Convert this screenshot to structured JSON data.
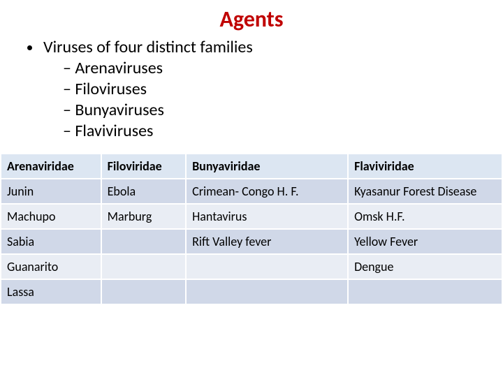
{
  "title": "Agents",
  "bullets": {
    "main": "Viruses of four distinct families",
    "sub": [
      "Arenaviruses",
      "Filoviruses",
      "Bunyaviruses",
      "Flaviviruses"
    ]
  },
  "table": {
    "type": "table",
    "header_bg": "#dce6f2",
    "row_alt_bg_a": "#e9edf4",
    "row_alt_bg_b": "#d0d8e8",
    "border_color": "#ffffff",
    "font_size": 18,
    "columns": [
      "Arenaviridae",
      "Filoviridae",
      "Bunyaviridae",
      "Flaviviridae"
    ],
    "rows": [
      [
        "Junin",
        "Ebola",
        "Crimean- Congo H. F.",
        "Kyasanur Forest Disease"
      ],
      [
        "Machupo",
        "Marburg",
        "Hantavirus",
        "Omsk H.F."
      ],
      [
        "Sabia",
        "",
        "Rift Valley fever",
        "Yellow Fever"
      ],
      [
        "Guanarito",
        "",
        "",
        "Dengue"
      ],
      [
        "Lassa",
        "",
        "",
        ""
      ]
    ]
  }
}
